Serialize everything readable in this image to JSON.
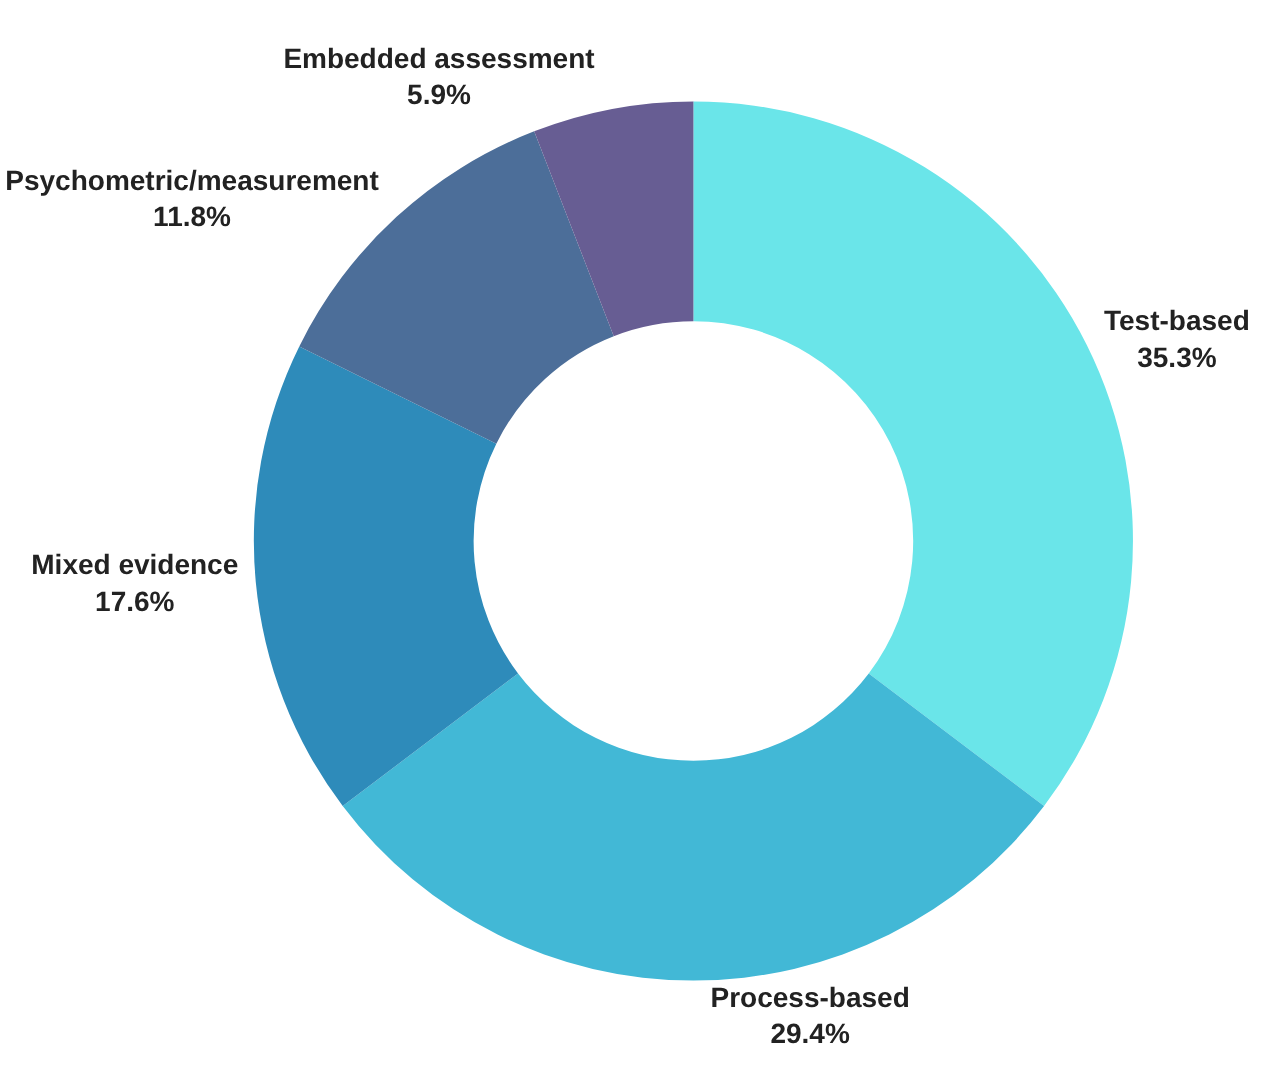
{
  "chart_data": {
    "type": "donut",
    "categories": [
      "Test-based",
      "Process-based",
      "Mixed evidence",
      "Psychometric/measurement",
      "Embedded assessment"
    ],
    "values": [
      35.3,
      29.4,
      17.6,
      11.8,
      5.9
    ],
    "value_labels": [
      "35.3%",
      "29.4%",
      "17.6%",
      "11.8%",
      "5.9%"
    ],
    "colors": [
      "#6ae5e9",
      "#42b8d6",
      "#2e8bba",
      "#4c6e99",
      "#675d93"
    ],
    "legend": false
  }
}
